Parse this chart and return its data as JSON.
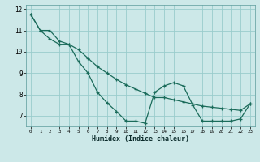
{
  "xlabel": "Humidex (Indice chaleur)",
  "bg_color": "#cce8e8",
  "line_color": "#1a6b5a",
  "grid_color": "#99cccc",
  "xlim": [
    -0.5,
    23.5
  ],
  "ylim": [
    6.5,
    12.2
  ],
  "xticks": [
    0,
    1,
    2,
    3,
    4,
    5,
    6,
    7,
    8,
    9,
    10,
    11,
    12,
    13,
    14,
    15,
    16,
    17,
    18,
    19,
    20,
    21,
    22,
    23
  ],
  "yticks": [
    7,
    8,
    9,
    10,
    11,
    12
  ],
  "line1_x": [
    0,
    1,
    2,
    3,
    4,
    5,
    6,
    7,
    8,
    9,
    10,
    11,
    12,
    13,
    14,
    15,
    16,
    17,
    18,
    19,
    20,
    21,
    22,
    23
  ],
  "line1_y": [
    11.75,
    11.0,
    11.0,
    10.5,
    10.35,
    9.55,
    9.0,
    8.1,
    7.6,
    7.2,
    6.75,
    6.75,
    6.65,
    8.1,
    8.4,
    8.55,
    8.4,
    7.5,
    6.75,
    6.75,
    6.75,
    6.75,
    6.85,
    7.55
  ],
  "line2_x": [
    0,
    1,
    2,
    3,
    4,
    5,
    6,
    7,
    8,
    9,
    10,
    11,
    12,
    13,
    14,
    15,
    16,
    17,
    18,
    19,
    20,
    21,
    22,
    23
  ],
  "line2_y": [
    11.75,
    11.0,
    10.6,
    10.35,
    10.35,
    10.1,
    9.7,
    9.3,
    9.0,
    8.7,
    8.45,
    8.25,
    8.05,
    7.85,
    7.85,
    7.75,
    7.65,
    7.55,
    7.45,
    7.4,
    7.35,
    7.3,
    7.25,
    7.55
  ]
}
